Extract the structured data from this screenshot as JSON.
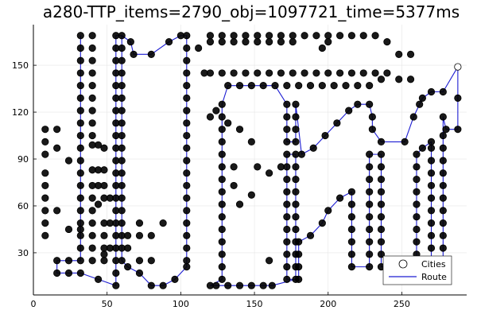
{
  "chart_data": {
    "type": "scatter",
    "title": "a280-TTP_items=2790_obj=1097721_time=5377ms",
    "xlabel": "",
    "ylabel": "",
    "xlim": [
      0,
      294
    ],
    "ylim": [
      3,
      176
    ],
    "x_ticks": [
      0,
      50,
      100,
      150,
      200,
      250
    ],
    "y_ticks": [
      30,
      60,
      90,
      120,
      150
    ],
    "grid": true,
    "legend": {
      "position": "bottom-right",
      "entries": [
        "Cities",
        "Route"
      ]
    },
    "colors": {
      "route": "#1c1cd2",
      "city_fill": "#000000",
      "city_stroke": "#000000",
      "start_marker": "#ffffff"
    },
    "start_city": [
      288,
      149
    ],
    "route": [
      [
        288,
        149
      ],
      [
        288,
        129
      ],
      [
        288,
        109
      ],
      [
        280,
        109
      ],
      [
        278,
        117
      ],
      [
        278,
        105
      ],
      [
        278,
        97
      ],
      [
        278,
        89
      ],
      [
        278,
        81
      ],
      [
        278,
        73
      ],
      [
        278,
        65
      ],
      [
        278,
        57
      ],
      [
        278,
        49
      ],
      [
        278,
        41
      ],
      [
        278,
        33
      ],
      [
        278,
        25
      ],
      [
        270,
        25
      ],
      [
        270,
        33
      ],
      [
        270,
        41
      ],
      [
        270,
        49
      ],
      [
        270,
        57
      ],
      [
        270,
        65
      ],
      [
        270,
        73
      ],
      [
        270,
        81
      ],
      [
        270,
        89
      ],
      [
        270,
        97
      ],
      [
        270,
        101
      ],
      [
        264,
        97
      ],
      [
        260,
        93
      ],
      [
        260,
        85
      ],
      [
        260,
        77
      ],
      [
        260,
        69
      ],
      [
        260,
        61
      ],
      [
        260,
        53
      ],
      [
        260,
        45
      ],
      [
        260,
        37
      ],
      [
        260,
        29
      ],
      [
        260,
        25
      ],
      [
        252,
        21
      ],
      [
        236,
        21
      ],
      [
        236,
        29
      ],
      [
        236,
        37
      ],
      [
        236,
        45
      ],
      [
        236,
        53
      ],
      [
        236,
        61
      ],
      [
        236,
        69
      ],
      [
        236,
        77
      ],
      [
        236,
        85
      ],
      [
        236,
        93
      ],
      [
        228,
        93
      ],
      [
        228,
        85
      ],
      [
        228,
        77
      ],
      [
        228,
        69
      ],
      [
        228,
        61
      ],
      [
        228,
        53
      ],
      [
        228,
        45
      ],
      [
        228,
        37
      ],
      [
        228,
        29
      ],
      [
        228,
        21
      ],
      [
        216,
        21
      ],
      [
        216,
        29
      ],
      [
        216,
        37
      ],
      [
        216,
        45
      ],
      [
        216,
        53
      ],
      [
        216,
        61
      ],
      [
        216,
        69
      ],
      [
        208,
        65
      ],
      [
        200,
        57
      ],
      [
        196,
        49
      ],
      [
        188,
        41
      ],
      [
        180,
        37
      ],
      [
        180,
        29
      ],
      [
        180,
        21
      ],
      [
        180,
        13
      ],
      [
        172,
        13
      ],
      [
        172,
        21
      ],
      [
        172,
        29
      ],
      [
        172,
        37
      ],
      [
        172,
        45
      ],
      [
        172,
        53
      ],
      [
        172,
        61
      ],
      [
        172,
        69
      ],
      [
        172,
        77
      ],
      [
        172,
        85
      ],
      [
        172,
        93
      ],
      [
        178,
        93
      ],
      [
        178,
        85
      ],
      [
        178,
        77
      ],
      [
        178,
        69
      ],
      [
        178,
        61
      ],
      [
        178,
        53
      ],
      [
        178,
        45
      ],
      [
        178,
        37
      ],
      [
        178,
        29
      ],
      [
        178,
        21
      ],
      [
        178,
        13
      ],
      [
        162,
        9
      ],
      [
        156,
        9
      ],
      [
        148,
        9
      ],
      [
        140,
        9
      ],
      [
        132,
        9
      ],
      [
        124,
        9
      ],
      [
        120,
        9
      ],
      [
        128,
        13
      ],
      [
        128,
        21
      ],
      [
        128,
        29
      ],
      [
        128,
        37
      ],
      [
        128,
        45
      ],
      [
        128,
        53
      ],
      [
        128,
        61
      ],
      [
        128,
        69
      ],
      [
        128,
        77
      ],
      [
        128,
        85
      ],
      [
        128,
        93
      ],
      [
        128,
        101
      ],
      [
        128,
        109
      ],
      [
        128,
        117
      ],
      [
        128,
        125
      ],
      [
        132,
        137
      ],
      [
        140,
        137
      ],
      [
        148,
        137
      ],
      [
        156,
        137
      ],
      [
        164,
        137
      ],
      [
        172,
        125
      ],
      [
        172,
        117
      ],
      [
        172,
        109
      ],
      [
        172,
        101
      ],
      [
        178,
        101
      ],
      [
        178,
        109
      ],
      [
        178,
        117
      ],
      [
        178,
        125
      ],
      [
        182,
        93
      ],
      [
        190,
        97
      ],
      [
        198,
        105
      ],
      [
        206,
        113
      ],
      [
        214,
        121
      ],
      [
        220,
        125
      ],
      [
        228,
        125
      ],
      [
        230,
        117
      ],
      [
        230,
        109
      ],
      [
        236,
        101
      ],
      [
        252,
        101
      ],
      [
        258,
        117
      ],
      [
        262,
        125
      ],
      [
        264,
        129
      ],
      [
        270,
        133
      ],
      [
        278,
        133
      ],
      [
        288,
        149
      ]
    ],
    "route_b": [
      [
        32,
        169
      ],
      [
        32,
        161
      ],
      [
        32,
        153
      ],
      [
        32,
        145
      ],
      [
        32,
        137
      ],
      [
        32,
        129
      ],
      [
        32,
        121
      ],
      [
        32,
        113
      ],
      [
        32,
        105
      ],
      [
        32,
        97
      ],
      [
        32,
        89
      ],
      [
        32,
        81
      ],
      [
        32,
        73
      ],
      [
        32,
        65
      ],
      [
        32,
        57
      ],
      [
        32,
        49
      ],
      [
        32,
        41
      ],
      [
        32,
        33
      ],
      [
        32,
        25
      ],
      [
        24,
        25
      ],
      [
        16,
        25
      ],
      [
        16,
        17
      ],
      [
        24,
        17
      ],
      [
        32,
        17
      ],
      [
        44,
        13
      ],
      [
        56,
        9
      ],
      [
        56,
        17
      ],
      [
        56,
        25
      ],
      [
        56,
        33
      ],
      [
        56,
        41
      ],
      [
        56,
        49
      ],
      [
        56,
        57
      ],
      [
        56,
        65
      ],
      [
        56,
        73
      ],
      [
        56,
        81
      ],
      [
        56,
        89
      ],
      [
        56,
        97
      ],
      [
        56,
        105
      ],
      [
        56,
        113
      ],
      [
        56,
        121
      ],
      [
        56,
        129
      ],
      [
        56,
        137
      ],
      [
        56,
        145
      ],
      [
        56,
        153
      ],
      [
        56,
        161
      ],
      [
        56,
        169
      ],
      [
        60,
        169
      ],
      [
        66,
        165
      ],
      [
        68,
        157
      ],
      [
        80,
        157
      ],
      [
        92,
        165
      ],
      [
        100,
        169
      ],
      [
        104,
        169
      ],
      [
        104,
        161
      ],
      [
        104,
        153
      ],
      [
        104,
        145
      ],
      [
        104,
        137
      ],
      [
        104,
        129
      ],
      [
        104,
        121
      ],
      [
        104,
        113
      ],
      [
        104,
        105
      ],
      [
        104,
        97
      ],
      [
        104,
        89
      ],
      [
        104,
        81
      ],
      [
        104,
        73
      ],
      [
        104,
        65
      ],
      [
        104,
        57
      ],
      [
        104,
        49
      ],
      [
        104,
        41
      ],
      [
        104,
        33
      ],
      [
        104,
        25
      ],
      [
        104,
        21
      ],
      [
        96,
        13
      ],
      [
        88,
        9
      ],
      [
        80,
        9
      ],
      [
        72,
        17
      ],
      [
        64,
        21
      ],
      [
        60,
        25
      ],
      [
        60,
        33
      ],
      [
        60,
        41
      ],
      [
        60,
        49
      ],
      [
        60,
        57
      ],
      [
        60,
        65
      ],
      [
        60,
        73
      ],
      [
        60,
        81
      ],
      [
        60,
        89
      ],
      [
        60,
        97
      ],
      [
        60,
        105
      ],
      [
        60,
        113
      ],
      [
        60,
        121
      ],
      [
        60,
        129
      ],
      [
        60,
        137
      ],
      [
        60,
        145
      ],
      [
        60,
        153
      ],
      [
        60,
        161
      ],
      [
        60,
        169
      ]
    ],
    "cities": [
      [
        8,
        109
      ],
      [
        8,
        101
      ],
      [
        8,
        93
      ],
      [
        8,
        81
      ],
      [
        8,
        73
      ],
      [
        8,
        65
      ],
      [
        8,
        57
      ],
      [
        8,
        49
      ],
      [
        8,
        41
      ],
      [
        16,
        109
      ],
      [
        16,
        97
      ],
      [
        16,
        57
      ],
      [
        24,
        89
      ],
      [
        24,
        45
      ],
      [
        32,
        89
      ],
      [
        32,
        45
      ],
      [
        40,
        169
      ],
      [
        40,
        161
      ],
      [
        40,
        153
      ],
      [
        40,
        145
      ],
      [
        40,
        137
      ],
      [
        40,
        129
      ],
      [
        40,
        121
      ],
      [
        40,
        113
      ],
      [
        40,
        105
      ],
      [
        40,
        99
      ],
      [
        40,
        83
      ],
      [
        40,
        73
      ],
      [
        40,
        65
      ],
      [
        40,
        57
      ],
      [
        40,
        49
      ],
      [
        40,
        41
      ],
      [
        40,
        33
      ],
      [
        40,
        25
      ],
      [
        44,
        99
      ],
      [
        44,
        83
      ],
      [
        44,
        73
      ],
      [
        44,
        61
      ],
      [
        48,
        97
      ],
      [
        48,
        83
      ],
      [
        48,
        73
      ],
      [
        48,
        65
      ],
      [
        48,
        49
      ],
      [
        48,
        41
      ],
      [
        48,
        33
      ],
      [
        48,
        29
      ],
      [
        48,
        25
      ],
      [
        52,
        65
      ],
      [
        52,
        49
      ],
      [
        52,
        33
      ],
      [
        64,
        41
      ],
      [
        64,
        33
      ],
      [
        72,
        41
      ],
      [
        72,
        25
      ],
      [
        72,
        49
      ],
      [
        80,
        25
      ],
      [
        80,
        41
      ],
      [
        88,
        49
      ],
      [
        112,
        161
      ],
      [
        116,
        145
      ],
      [
        120,
        145
      ],
      [
        128,
        145
      ],
      [
        136,
        145
      ],
      [
        144,
        145
      ],
      [
        152,
        145
      ],
      [
        160,
        145
      ],
      [
        168,
        145
      ],
      [
        176,
        145
      ],
      [
        184,
        145
      ],
      [
        192,
        145
      ],
      [
        200,
        145
      ],
      [
        208,
        145
      ],
      [
        216,
        145
      ],
      [
        224,
        145
      ],
      [
        232,
        145
      ],
      [
        240,
        145
      ],
      [
        248,
        141
      ],
      [
        256,
        141
      ],
      [
        236,
        141
      ],
      [
        228,
        137
      ],
      [
        220,
        137
      ],
      [
        212,
        137
      ],
      [
        204,
        137
      ],
      [
        196,
        137
      ],
      [
        188,
        137
      ],
      [
        180,
        137
      ],
      [
        172,
        137
      ],
      [
        164,
        137
      ],
      [
        160,
        145
      ],
      [
        136,
        73
      ],
      [
        140,
        61
      ],
      [
        148,
        67
      ],
      [
        152,
        85
      ],
      [
        160,
        81
      ],
      [
        168,
        85
      ],
      [
        160,
        25
      ],
      [
        120,
        169
      ],
      [
        128,
        169
      ],
      [
        136,
        169
      ],
      [
        144,
        169
      ],
      [
        152,
        169
      ],
      [
        160,
        169
      ],
      [
        168,
        169
      ],
      [
        176,
        169
      ],
      [
        184,
        169
      ],
      [
        192,
        169
      ],
      [
        200,
        169
      ],
      [
        208,
        169
      ],
      [
        216,
        169
      ],
      [
        224,
        169
      ],
      [
        232,
        169
      ],
      [
        240,
        165
      ],
      [
        248,
        157
      ],
      [
        256,
        157
      ],
      [
        196,
        161
      ],
      [
        200,
        165
      ],
      [
        176,
        165
      ],
      [
        168,
        165
      ],
      [
        160,
        165
      ],
      [
        152,
        165
      ],
      [
        144,
        165
      ],
      [
        136,
        165
      ],
      [
        128,
        165
      ],
      [
        120,
        165
      ],
      [
        136,
        85
      ],
      [
        148,
        101
      ],
      [
        140,
        109
      ],
      [
        132,
        113
      ],
      [
        124,
        121
      ],
      [
        120,
        117
      ]
    ]
  }
}
